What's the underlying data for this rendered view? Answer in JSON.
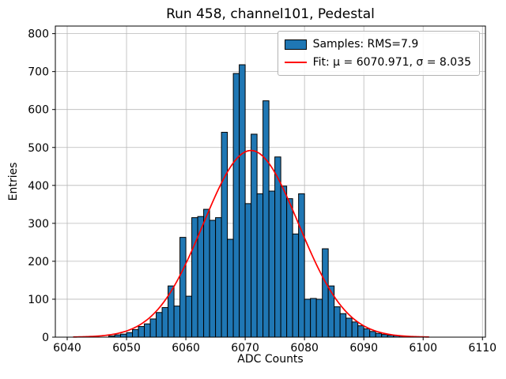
{
  "title": "Run 458, channel101, Pedestal",
  "legend": {
    "samples_label": "Samples: RMS=7.9",
    "fit_label": "Fit: μ = 6070.971, σ = 8.035"
  },
  "colors": {
    "bar_fill": "#1f77b4",
    "bar_edge": "#000000",
    "fit_line": "#ff0000",
    "grid": "#b8b8b8",
    "axes": "#000000"
  },
  "chart_data": {
    "type": "bar",
    "title": "Run 458, channel101, Pedestal",
    "xlabel": "ADC Counts",
    "ylabel": "Entries",
    "grid": true,
    "legend_position": "upper right",
    "bin_start": 6047,
    "bin_width": 1,
    "values": [
      3,
      6,
      8,
      12,
      20,
      28,
      35,
      48,
      65,
      78,
      135,
      82,
      263,
      108,
      315,
      318,
      337,
      308,
      315,
      540,
      258,
      695,
      718,
      352,
      535,
      378,
      623,
      385,
      475,
      398,
      365,
      272,
      378,
      100,
      102,
      100,
      233,
      135,
      80,
      62,
      50,
      40,
      30,
      22,
      15,
      10,
      7,
      5,
      4,
      3,
      2
    ],
    "fit": {
      "mu": 6070.971,
      "sigma": 8.035,
      "amplitude": 492,
      "x_range": [
        6041,
        6101
      ]
    },
    "xlim": [
      6038,
      6110.5
    ],
    "ylim": [
      0,
      820
    ],
    "xticks": [
      6040,
      6050,
      6060,
      6070,
      6080,
      6090,
      6100,
      6110
    ],
    "yticks": [
      0,
      100,
      200,
      300,
      400,
      500,
      600,
      700,
      800
    ]
  }
}
